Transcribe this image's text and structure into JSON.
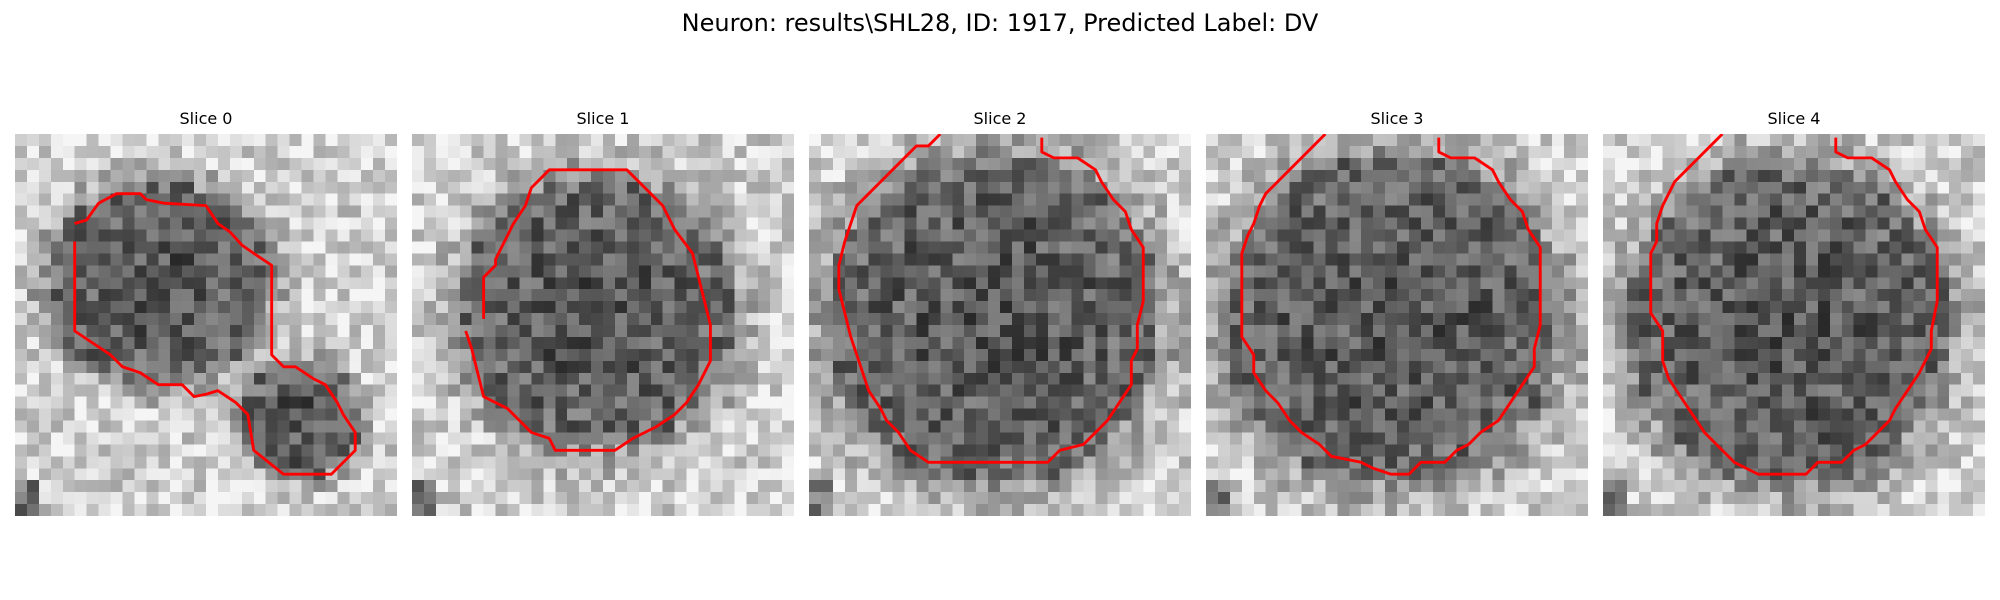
{
  "figure": {
    "title": "Neuron: results\\SHL28, ID: 1917, Predicted Label: DV"
  },
  "panels": [
    {
      "title": "Slice 0",
      "cell": "irregular"
    },
    {
      "title": "Slice 1",
      "cell": "round"
    },
    {
      "title": "Slice 2",
      "cell": "round-large"
    },
    {
      "title": "Slice 3",
      "cell": "round-large"
    },
    {
      "title": "Slice 4",
      "cell": "round-large"
    }
  ],
  "colors": {
    "contour": "#ff0000",
    "background": "#ffffff",
    "text": "#000000"
  },
  "image": {
    "colormap": "grayscale",
    "grid": 32
  }
}
